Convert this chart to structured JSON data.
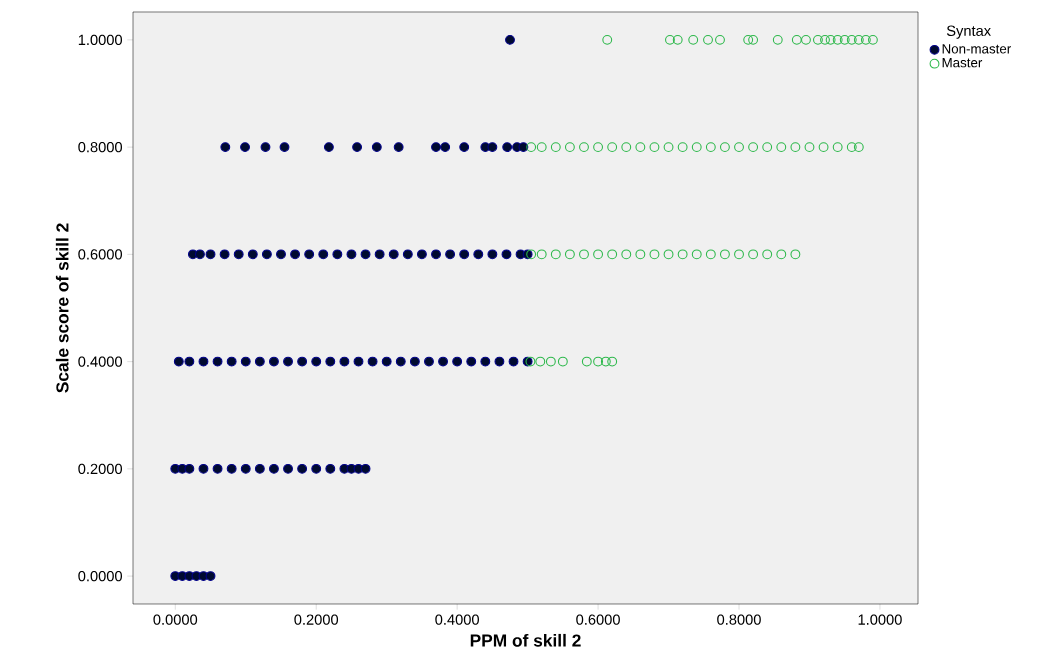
{
  "chart_data": {
    "type": "scatter",
    "xlabel": "PPM of skill 2",
    "ylabel": "Scale score of skill 2",
    "legend_title": "Syntax",
    "legend": "top right",
    "marker": "circle",
    "grid": false,
    "xlim": [
      -0.06,
      1.054
    ],
    "ylim": [
      -0.052,
      1.052
    ],
    "xticks": [
      {
        "value": 0,
        "label": "0.0000"
      },
      {
        "value": 0.2,
        "label": "0.2000"
      },
      {
        "value": 0.4,
        "label": "0.4000"
      },
      {
        "value": 0.6,
        "label": "0.6000"
      },
      {
        "value": 0.8,
        "label": "0.8000"
      },
      {
        "value": 1,
        "label": "1.0000"
      }
    ],
    "yticks": [
      {
        "value": 0,
        "label": "0.0000"
      },
      {
        "value": 0.2,
        "label": "0.2000"
      },
      {
        "value": 0.4,
        "label": "0.4000"
      },
      {
        "value": 0.6,
        "label": "0.6000"
      },
      {
        "value": 0.8,
        "label": "0.8000"
      },
      {
        "value": 1,
        "label": "1.0000"
      }
    ],
    "series": [
      {
        "name": "Non-master",
        "color": "#000a30",
        "x": [
          0.475,
          0.071,
          0.099,
          0.128,
          0.155,
          0.218,
          0.258,
          0.286,
          0.317,
          0.37,
          0.383,
          0.41,
          0.44,
          0.45,
          0.471,
          0.485,
          0.494,
          0.025,
          0.035,
          0.05,
          0.07,
          0.09,
          0.11,
          0.13,
          0.15,
          0.17,
          0.19,
          0.21,
          0.23,
          0.25,
          0.27,
          0.29,
          0.31,
          0.33,
          0.35,
          0.37,
          0.39,
          0.41,
          0.43,
          0.45,
          0.47,
          0.49,
          0.5,
          0.005,
          0.02,
          0.04,
          0.06,
          0.08,
          0.1,
          0.12,
          0.14,
          0.16,
          0.18,
          0.2,
          0.22,
          0.24,
          0.26,
          0.28,
          0.3,
          0.32,
          0.34,
          0.36,
          0.38,
          0.4,
          0.42,
          0.44,
          0.46,
          0.48,
          0.5,
          0.0,
          0.01,
          0.02,
          0.04,
          0.06,
          0.08,
          0.1,
          0.12,
          0.14,
          0.16,
          0.18,
          0.2,
          0.22,
          0.24,
          0.25,
          0.26,
          0.27,
          0.0,
          0.01,
          0.02,
          0.03,
          0.04,
          0.05
        ],
        "values": [
          1,
          0.8,
          0.8,
          0.8,
          0.8,
          0.8,
          0.8,
          0.8,
          0.8,
          0.8,
          0.8,
          0.8,
          0.8,
          0.8,
          0.8,
          0.8,
          0.8,
          0.6,
          0.6,
          0.6,
          0.6,
          0.6,
          0.6,
          0.6,
          0.6,
          0.6,
          0.6,
          0.6,
          0.6,
          0.6,
          0.6,
          0.6,
          0.6,
          0.6,
          0.6,
          0.6,
          0.6,
          0.6,
          0.6,
          0.6,
          0.6,
          0.6,
          0.6,
          0.4,
          0.4,
          0.4,
          0.4,
          0.4,
          0.4,
          0.4,
          0.4,
          0.4,
          0.4,
          0.4,
          0.4,
          0.4,
          0.4,
          0.4,
          0.4,
          0.4,
          0.4,
          0.4,
          0.4,
          0.4,
          0.4,
          0.4,
          0.4,
          0.4,
          0.4,
          0.2,
          0.2,
          0.2,
          0.2,
          0.2,
          0.2,
          0.2,
          0.2,
          0.2,
          0.2,
          0.2,
          0.2,
          0.2,
          0.2,
          0.2,
          0.2,
          0.2,
          0,
          0,
          0,
          0,
          0,
          0
        ]
      },
      {
        "name": "Master",
        "color": "#2db84b",
        "x": [
          0.613,
          0.702,
          0.713,
          0.735,
          0.756,
          0.773,
          0.813,
          0.82,
          0.855,
          0.882,
          0.895,
          0.912,
          0.922,
          0.93,
          0.94,
          0.95,
          0.96,
          0.97,
          0.98,
          0.99,
          0.505,
          0.52,
          0.54,
          0.56,
          0.58,
          0.6,
          0.62,
          0.64,
          0.66,
          0.68,
          0.7,
          0.72,
          0.74,
          0.76,
          0.78,
          0.8,
          0.82,
          0.84,
          0.86,
          0.88,
          0.9,
          0.92,
          0.94,
          0.96,
          0.97,
          0.505,
          0.52,
          0.54,
          0.56,
          0.58,
          0.6,
          0.62,
          0.64,
          0.66,
          0.68,
          0.7,
          0.72,
          0.74,
          0.76,
          0.78,
          0.8,
          0.82,
          0.84,
          0.86,
          0.88,
          0.504,
          0.518,
          0.533,
          0.55,
          0.584,
          0.6,
          0.611,
          0.62
        ],
        "values": [
          1,
          1,
          1,
          1,
          1,
          1,
          1,
          1,
          1,
          1,
          1,
          1,
          1,
          1,
          1,
          1,
          1,
          1,
          1,
          1,
          0.8,
          0.8,
          0.8,
          0.8,
          0.8,
          0.8,
          0.8,
          0.8,
          0.8,
          0.8,
          0.8,
          0.8,
          0.8,
          0.8,
          0.8,
          0.8,
          0.8,
          0.8,
          0.8,
          0.8,
          0.8,
          0.8,
          0.8,
          0.8,
          0.8,
          0.6,
          0.6,
          0.6,
          0.6,
          0.6,
          0.6,
          0.6,
          0.6,
          0.6,
          0.6,
          0.6,
          0.6,
          0.6,
          0.6,
          0.6,
          0.6,
          0.6,
          0.6,
          0.6,
          0.6,
          0.4,
          0.4,
          0.4,
          0.4,
          0.4,
          0.4,
          0.4,
          0.4
        ]
      }
    ]
  }
}
